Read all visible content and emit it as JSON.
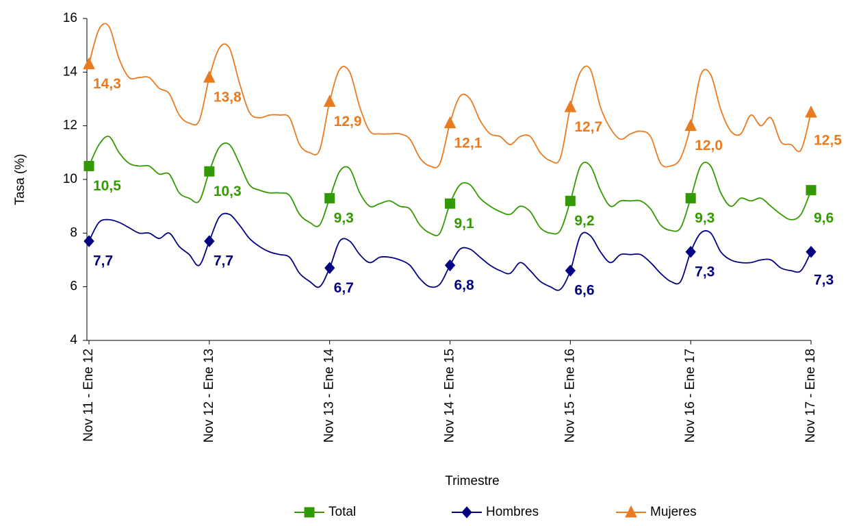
{
  "chart_data": {
    "type": "line",
    "y_label": "Tasa (%)",
    "x_label": "Trimestre",
    "categories": [
      "Nov 11 - Ene 12",
      null,
      null,
      null,
      null,
      null,
      null,
      null,
      null,
      null,
      null,
      null,
      "Nov 12 - Ene 13",
      null,
      null,
      null,
      null,
      null,
      null,
      null,
      null,
      null,
      null,
      null,
      "Nov 13 - Ene 14",
      null,
      null,
      null,
      null,
      null,
      null,
      null,
      null,
      null,
      null,
      null,
      "Nov 14 - Ene 15",
      null,
      null,
      null,
      null,
      null,
      null,
      null,
      null,
      null,
      null,
      null,
      "Nov 15 - Ene 16",
      null,
      null,
      null,
      null,
      null,
      null,
      null,
      null,
      null,
      null,
      null,
      "Nov 16 - Ene 17",
      null,
      null,
      null,
      null,
      null,
      null,
      null,
      null,
      null,
      null,
      null,
      "Nov 17 - Ene 18"
    ],
    "series": [
      {
        "name": "Total",
        "color": "#339900",
        "marker": "square",
        "values": [
          10.5,
          11.3,
          11.6,
          11.0,
          10.6,
          10.5,
          10.5,
          10.2,
          10.2,
          9.5,
          9.3,
          9.2,
          10.3,
          11.2,
          11.3,
          10.6,
          9.8,
          9.6,
          9.5,
          9.5,
          9.4,
          8.7,
          8.4,
          8.3,
          9.3,
          10.3,
          10.4,
          9.5,
          9.0,
          9.1,
          9.2,
          9.0,
          8.9,
          8.3,
          8.0,
          8.0,
          9.1,
          9.8,
          9.8,
          9.3,
          9.0,
          8.8,
          8.7,
          9.0,
          8.8,
          8.2,
          8.0,
          8.1,
          9.2,
          10.5,
          10.5,
          9.6,
          9.0,
          9.2,
          9.2,
          9.2,
          8.9,
          8.3,
          8.1,
          8.2,
          9.3,
          10.5,
          10.5,
          9.5,
          9.0,
          9.3,
          9.2,
          9.3,
          9.0,
          8.7,
          8.5,
          8.7,
          9.6
        ],
        "value_labels": [
          "10,5",
          null,
          null,
          null,
          null,
          null,
          null,
          null,
          null,
          null,
          null,
          null,
          "10,3",
          null,
          null,
          null,
          null,
          null,
          null,
          null,
          null,
          null,
          null,
          null,
          "9,3",
          null,
          null,
          null,
          null,
          null,
          null,
          null,
          null,
          null,
          null,
          null,
          "9,1",
          null,
          null,
          null,
          null,
          null,
          null,
          null,
          null,
          null,
          null,
          null,
          "9,2",
          null,
          null,
          null,
          null,
          null,
          null,
          null,
          null,
          null,
          null,
          null,
          "9,3",
          null,
          null,
          null,
          null,
          null,
          null,
          null,
          null,
          null,
          null,
          null,
          "9,6"
        ]
      },
      {
        "name": "Hombres",
        "color": "#000080",
        "marker": "diamond",
        "values": [
          7.7,
          8.4,
          8.5,
          8.4,
          8.2,
          8.0,
          8.0,
          7.8,
          8.0,
          7.5,
          7.2,
          6.8,
          7.7,
          8.6,
          8.7,
          8.3,
          7.8,
          7.5,
          7.3,
          7.2,
          7.1,
          6.5,
          6.2,
          6.0,
          6.7,
          7.7,
          7.7,
          7.2,
          6.9,
          7.1,
          7.1,
          7.0,
          6.8,
          6.3,
          6.0,
          6.1,
          6.8,
          7.4,
          7.4,
          7.1,
          6.8,
          6.6,
          6.5,
          6.9,
          6.6,
          6.2,
          6.0,
          5.9,
          6.6,
          7.9,
          7.9,
          7.3,
          6.9,
          7.2,
          7.2,
          7.2,
          6.9,
          6.5,
          6.2,
          6.2,
          7.3,
          8.0,
          8.0,
          7.3,
          7.0,
          6.9,
          6.9,
          7.0,
          7.0,
          6.7,
          6.6,
          6.6,
          7.3
        ],
        "value_labels": [
          "7,7",
          null,
          null,
          null,
          null,
          null,
          null,
          null,
          null,
          null,
          null,
          null,
          "7,7",
          null,
          null,
          null,
          null,
          null,
          null,
          null,
          null,
          null,
          null,
          null,
          "6,7",
          null,
          null,
          null,
          null,
          null,
          null,
          null,
          null,
          null,
          null,
          null,
          "6,8",
          null,
          null,
          null,
          null,
          null,
          null,
          null,
          null,
          null,
          null,
          null,
          "6,6",
          null,
          null,
          null,
          null,
          null,
          null,
          null,
          null,
          null,
          null,
          null,
          "7,3",
          null,
          null,
          null,
          null,
          null,
          null,
          null,
          null,
          null,
          null,
          null,
          "7,3"
        ]
      },
      {
        "name": "Mujeres",
        "color": "#e97a1f",
        "marker": "triangle",
        "values": [
          14.3,
          15.6,
          15.7,
          14.5,
          13.8,
          13.8,
          13.8,
          13.4,
          13.2,
          12.4,
          12.1,
          12.2,
          13.8,
          14.9,
          14.9,
          13.6,
          12.5,
          12.3,
          12.4,
          12.4,
          12.3,
          11.3,
          11.0,
          11.1,
          12.9,
          14.1,
          14.0,
          12.7,
          11.8,
          11.7,
          11.7,
          11.7,
          11.5,
          10.8,
          10.5,
          10.6,
          12.1,
          13.1,
          13.0,
          12.2,
          11.7,
          11.6,
          11.3,
          11.6,
          11.6,
          11.0,
          10.7,
          10.8,
          12.7,
          14.0,
          14.1,
          12.7,
          11.9,
          11.5,
          11.7,
          11.8,
          11.6,
          10.6,
          10.5,
          10.8,
          12.0,
          13.9,
          13.9,
          12.6,
          11.8,
          11.7,
          12.4,
          12.0,
          12.3,
          11.4,
          11.3,
          11.1,
          12.5
        ],
        "value_labels": [
          "14,3",
          null,
          null,
          null,
          null,
          null,
          null,
          null,
          null,
          null,
          null,
          null,
          "13,8",
          null,
          null,
          null,
          null,
          null,
          null,
          null,
          null,
          null,
          null,
          null,
          "12,9",
          null,
          null,
          null,
          null,
          null,
          null,
          null,
          null,
          null,
          null,
          null,
          "12,1",
          null,
          null,
          null,
          null,
          null,
          null,
          null,
          null,
          null,
          null,
          null,
          "12,7",
          null,
          null,
          null,
          null,
          null,
          null,
          null,
          null,
          null,
          null,
          null,
          "12,0",
          null,
          null,
          null,
          null,
          null,
          null,
          null,
          null,
          null,
          null,
          null,
          "12,5"
        ]
      }
    ],
    "ylim": [
      4,
      16
    ],
    "yticks": [
      4,
      6,
      8,
      10,
      12,
      14,
      16
    ],
    "legend": "bottom"
  }
}
